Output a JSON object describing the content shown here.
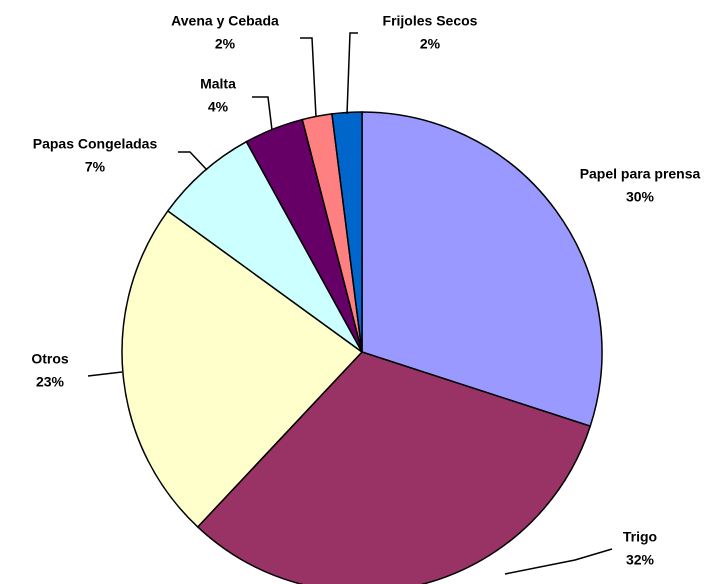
{
  "chart_data": {
    "type": "pie",
    "categories": [
      "Papel para prensa",
      "Trigo",
      "Otros",
      "Papas Congeladas",
      "Malta",
      "Avena y Cebada",
      "Frijoles Secos"
    ],
    "values": [
      30,
      32,
      23,
      7,
      4,
      2,
      2
    ],
    "value_labels": [
      "30%",
      "32%",
      "23%",
      "7%",
      "4%",
      "2%",
      "2%"
    ],
    "colors": [
      "#9999ff",
      "#993366",
      "#ffffcc",
      "#ccffff",
      "#660066",
      "#ff8080",
      "#0066cc"
    ]
  }
}
